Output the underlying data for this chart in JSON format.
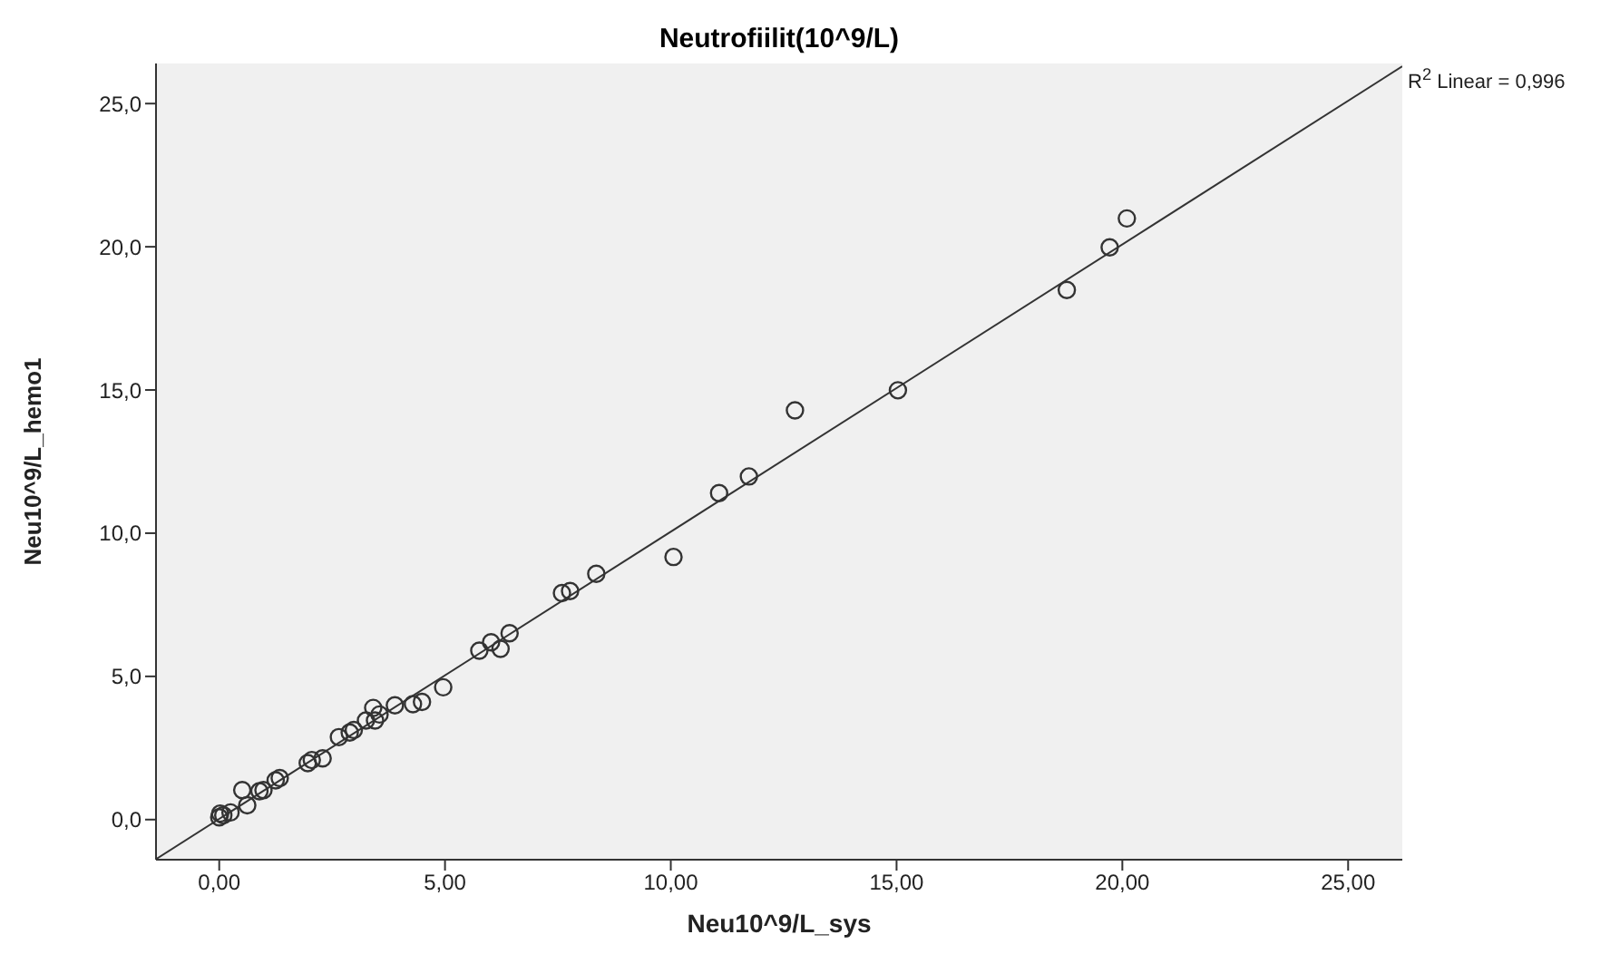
{
  "chart_data": {
    "type": "scatter",
    "title": "Neutrofiilit(10^9/L)",
    "xlabel": "Neu10^9/L_sys",
    "ylabel": "Neu10^9/L_hemo1",
    "annotations": [
      "R$^{2}$ Linear = 0,996"
    ],
    "xlim": [
      -1.4,
      26.2
    ],
    "ylim": [
      -1.4,
      26.4
    ],
    "xticks": [
      {
        "value": 0,
        "label": "0,00"
      },
      {
        "value": 5,
        "label": "5,00"
      },
      {
        "value": 10,
        "label": "10,00"
      },
      {
        "value": 15,
        "label": "15,00"
      },
      {
        "value": 20,
        "label": "20,00"
      },
      {
        "value": 25,
        "label": "25,00"
      }
    ],
    "yticks": [
      {
        "value": 0,
        "label": "0,0"
      },
      {
        "value": 5,
        "label": "5,0"
      },
      {
        "value": 10,
        "label": "10,0"
      },
      {
        "value": 15,
        "label": "15,0"
      },
      {
        "value": 20,
        "label": "20,0"
      },
      {
        "value": 25,
        "label": "25,0"
      }
    ],
    "grid": false,
    "series": [
      {
        "marker": "circle",
        "color": "#333333",
        "x": [
          20.1,
          19.72,
          18.77,
          15.03,
          12.75,
          11.73,
          11.07,
          10.06,
          8.35,
          7.77,
          7.59,
          6.43,
          6.02,
          6.23,
          5.76,
          4.96,
          4.49,
          4.29,
          3.89,
          3.41,
          3.55,
          3.45,
          3.25,
          2.98,
          2.89,
          2.65,
          2.29,
          2.05,
          1.96,
          1.34,
          1.25,
          0.98,
          0.89,
          0.51,
          0.62,
          0.25,
          0.02,
          0.0,
          0.09
        ],
        "values": [
          20.99,
          19.98,
          18.49,
          14.99,
          14.29,
          11.98,
          11.4,
          9.17,
          8.58,
          7.98,
          7.91,
          6.51,
          6.19,
          5.96,
          5.9,
          4.62,
          4.11,
          4.03,
          3.99,
          3.9,
          3.67,
          3.46,
          3.46,
          3.13,
          3.04,
          2.88,
          2.14,
          2.08,
          1.97,
          1.45,
          1.37,
          1.03,
          0.99,
          1.03,
          0.5,
          0.25,
          0.21,
          0.08,
          0.15
        ]
      },
      {
        "type": "line",
        "color": "#333333",
        "x": [
          -1.4,
          26.2
        ],
        "values": [
          -1.38,
          26.3
        ]
      }
    ]
  }
}
